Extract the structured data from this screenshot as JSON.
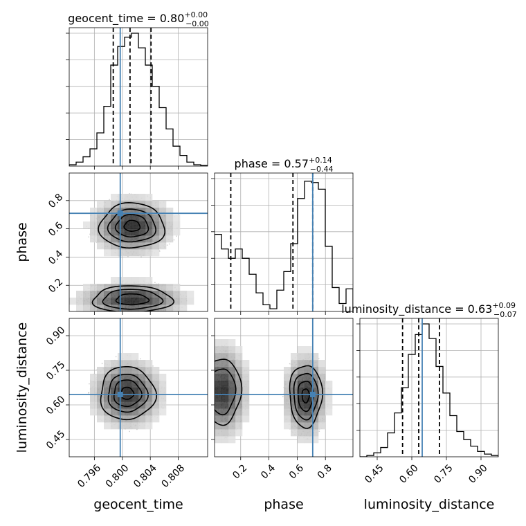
{
  "truth_color": "#4682b4",
  "chart_data": {
    "type": "corner",
    "parameters": [
      "geocent_time",
      "phase",
      "luminosity_distance"
    ],
    "truths": {
      "geocent_time": 0.7997,
      "phase": 0.71,
      "luminosity_distance": 0.645
    },
    "titles": [
      {
        "name": "geocent_time",
        "value": "0.80",
        "plus": "+0.00",
        "minus": "−0.00"
      },
      {
        "name": "phase",
        "value": "0.57",
        "plus": "+0.14",
        "minus": "−0.44"
      },
      {
        "name": "luminosity_distance",
        "value": "0.63",
        "plus": "+0.09",
        "minus": "−0.07"
      }
    ],
    "ranges": {
      "geocent_time": [
        0.7924,
        0.8122
      ],
      "phase": [
        0.015,
        0.995
      ],
      "luminosity_distance": [
        0.375,
        0.975
      ]
    },
    "ticks": {
      "geocent_time": {
        "values": [
          0.796,
          0.8,
          0.804,
          0.808
        ],
        "labels": [
          "0.796",
          "0.800",
          "0.804",
          "0.808"
        ]
      },
      "phase": {
        "values": [
          0.2,
          0.4,
          0.6,
          0.8
        ],
        "labels": [
          "0.2",
          "0.4",
          "0.6",
          "0.8"
        ]
      },
      "luminosity_distance": {
        "values": [
          0.45,
          0.6,
          0.75,
          0.9
        ],
        "labels": [
          "0.45",
          "0.60",
          "0.75",
          "0.90"
        ]
      }
    },
    "quantiles": {
      "geocent_time": [
        0.7987,
        0.8011,
        0.8041
      ],
      "phase": [
        0.13,
        0.57,
        0.71
      ],
      "luminosity_distance": [
        0.56,
        0.63,
        0.72
      ]
    },
    "histograms": {
      "geocent_time": {
        "bin_width": 0.00099,
        "counts": [
          0.01,
          0.03,
          0.07,
          0.13,
          0.25,
          0.45,
          0.76,
          0.9,
          0.97,
          1.0,
          0.89,
          0.76,
          0.6,
          0.44,
          0.28,
          0.15,
          0.08,
          0.03,
          0.01,
          0.005
        ]
      },
      "phase": {
        "bin_width": 0.049,
        "counts": [
          0.58,
          0.47,
          0.4,
          0.47,
          0.4,
          0.28,
          0.14,
          0.05,
          0.02,
          0.16,
          0.3,
          0.51,
          0.85,
          0.98,
          0.97,
          0.92,
          0.49,
          0.18,
          0.06,
          0.17
        ]
      },
      "luminosity_distance": {
        "bin_width": 0.03,
        "counts": [
          0.0,
          0.01,
          0.03,
          0.07,
          0.18,
          0.33,
          0.52,
          0.77,
          0.92,
          1.0,
          0.89,
          0.68,
          0.48,
          0.31,
          0.19,
          0.13,
          0.08,
          0.04,
          0.02,
          0.01
        ]
      }
    },
    "contours_2d": [
      {
        "x": "geocent_time",
        "y": "phase",
        "blobs": [
          {
            "cx": 0.8014,
            "cy": 0.62,
            "sx": 0.0032,
            "sy": 0.11,
            "angle": -28,
            "levels": [
              0.35,
              0.72,
              1.05,
              1.45
            ]
          },
          {
            "cx": 0.8014,
            "cy": 0.1,
            "sx": 0.0042,
            "sy": 0.07,
            "angle": -16,
            "levels": [
              0.55,
              1.0,
              1.35
            ]
          }
        ]
      },
      {
        "x": "geocent_time",
        "y": "luminosity_distance",
        "blobs": [
          {
            "cx": 0.8007,
            "cy": 0.65,
            "sx": 0.0028,
            "sy": 0.082,
            "angle": -8,
            "levels": [
              0.32,
              0.7,
              1.0,
              1.4
            ]
          }
        ]
      },
      {
        "x": "phase",
        "y": "luminosity_distance",
        "blobs": [
          {
            "cx": 0.66,
            "cy": 0.64,
            "sx": 0.085,
            "sy": 0.1,
            "angle": 0,
            "levels": [
              0.3,
              0.65,
              1.0,
              1.35
            ]
          },
          {
            "cx": 0.07,
            "cy": 0.66,
            "sx": 0.1,
            "sy": 0.11,
            "angle": 0,
            "levels": [
              0.9,
              1.3
            ]
          }
        ]
      }
    ]
  }
}
